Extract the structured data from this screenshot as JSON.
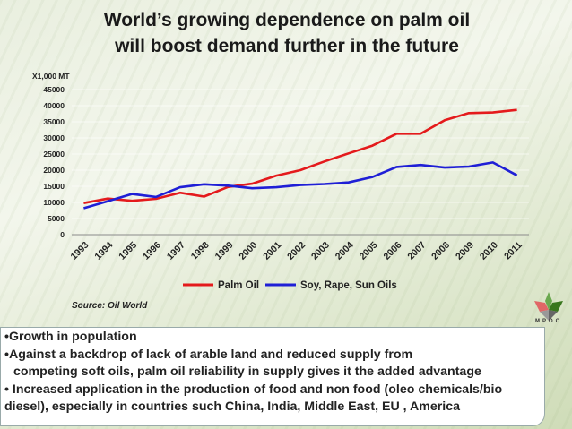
{
  "title_lines": [
    "World’s growing  dependence on palm oil",
    "will boost demand further in the future"
  ],
  "source": "Source: Oil World",
  "logo_text": "MPOC",
  "notes": [
    "•Growth in population",
    "•Against a backdrop of lack of arable land and reduced supply from",
    "competing soft oils, palm oil reliability in supply gives it the added  advantage",
    "• Increased application in the production of food and non food (oleo chemicals/bio",
    "diesel), especially in countries such China, India, Middle East, EU , America"
  ],
  "colors": {
    "palm": "#e41a1c",
    "soy": "#1f1fd6",
    "grid": "#ffffff"
  },
  "chart_data": {
    "type": "line",
    "unit_label": "X1,000 MT",
    "x": [
      "1993",
      "1994",
      "1995",
      "1996",
      "1997",
      "1998",
      "1999",
      "2000",
      "2001",
      "2002",
      "2003",
      "2004",
      "2005",
      "2006",
      "2007",
      "2008",
      "2009",
      "2010",
      "2011"
    ],
    "series": [
      {
        "name": "Palm Oil",
        "values": [
          9800,
          11200,
          10500,
          11100,
          13000,
          11800,
          14800,
          15800,
          18300,
          20000,
          22700,
          25200,
          27600,
          31300,
          31300,
          35500,
          37700,
          37900,
          38700
        ]
      },
      {
        "name": "Soy, Rape, Sun Oils",
        "values": [
          8200,
          10400,
          12600,
          11700,
          14700,
          15600,
          15200,
          14400,
          14700,
          15400,
          15700,
          16200,
          17900,
          21000,
          21600,
          20800,
          21100,
          22400,
          18400
        ]
      }
    ],
    "yticks": [
      "0",
      "5000",
      "10000",
      "15000",
      "20000",
      "25000",
      "30000",
      "35000",
      "40000",
      "45000"
    ],
    "ylim": [
      0,
      45000
    ],
    "legend": "bottom"
  }
}
